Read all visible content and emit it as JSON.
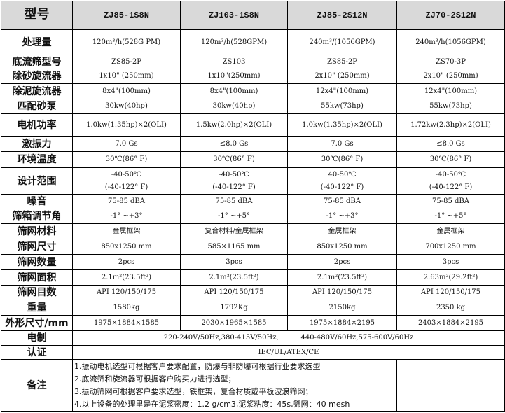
{
  "header": {
    "label": "型号",
    "models": [
      "ZJ85-1S8N",
      "ZJ103-1S8N",
      "ZJ85-2S12N",
      "ZJ70-2S12N"
    ]
  },
  "rows": [
    {
      "label": "处理量",
      "values": [
        "120m³/h(528G PM)",
        "120m³/h(528GPM)",
        "240m³/(1056GPM)",
        "240m³/h(1056GPM)"
      ]
    },
    {
      "label": "底流筛型号",
      "values": [
        "ZS85-2P",
        "ZS103",
        "ZS85-2P",
        "ZS70-3P"
      ]
    },
    {
      "label": "除砂旋流器",
      "values": [
        "1x10\" (250mm)",
        "1x10\"(250mm)",
        "2x10\" (250mm)",
        "2x10\" (250mm)"
      ]
    },
    {
      "label": "除泥旋流器",
      "values": [
        "8x4\"(100mm)",
        "8x4\"(100mm)",
        "12x4\"(100mm)",
        "12x4\"(100mm)"
      ]
    },
    {
      "label": "匹配砂泵",
      "values": [
        "30kw(40hp)",
        "30kw(40hp)",
        "55kw(73hp)",
        "55kw(73hp)"
      ]
    },
    {
      "label": "电机功率",
      "values": [
        "1.0kw(1.35hp)×2(OLI)",
        "1.5kw(2.0hp)×2(OLI)",
        "1.0kw(1.35hp)×2(OLI)",
        "1.72kw(2.3hp)×2(OLI)"
      ]
    },
    {
      "label": "激振力",
      "values": [
        "7.0 Gs",
        "≤8.0 Gs",
        "7.0 Gs",
        "≤8.0 Gs"
      ]
    },
    {
      "label": "环境温度",
      "values": [
        "30℃(86° F)",
        "30℃(86° F)",
        "30℃(86° F)",
        "30℃(86° F)"
      ]
    },
    {
      "label": "设计范围",
      "values": [
        [
          "-40-50℃",
          "(-40-122° F)"
        ],
        [
          "-40-50℃",
          "(-40-122° F)"
        ],
        [
          "40-50℃",
          "(-40-122° F)"
        ],
        [
          "-40-50℃",
          "(-40-122° F)"
        ]
      ]
    },
    {
      "label": "噪音",
      "values": [
        "75-85 dBA",
        "75-85 dBA",
        "75-85 dBA",
        "75-85 dBA"
      ]
    },
    {
      "label": "筛箱调节角",
      "values": [
        "-1° ~+3°",
        "-1° ~+5°",
        "-1° ~+3°",
        "-1° ~+5°"
      ]
    },
    {
      "label": "筛网材料",
      "values": [
        "金属框架",
        "复合材料/金属框架",
        "金属框架",
        "金属框架"
      ]
    },
    {
      "label": "筛网尺寸",
      "values": [
        "850x1250 mm",
        "585×1165 mm",
        "850x1250 mm",
        "700x1250 mm"
      ]
    },
    {
      "label": "筛网数量",
      "values": [
        "2pcs",
        "3pcs",
        "2pcs",
        "3pcs"
      ]
    },
    {
      "label": "筛网面积",
      "values": [
        "2.1m²(23.5ft²)",
        "2.1m²(23.5ft²)",
        "2.1m²(23.5ft²)",
        "2.63m²(29.2ft²)"
      ]
    },
    {
      "label": "筛网目数",
      "values": [
        "API 120/150/175",
        "API 120/150/175",
        "API 120/150/175",
        "API 120/150/175"
      ]
    },
    {
      "label": "重量",
      "values": [
        "1580kg",
        "1792Kg",
        "2150kg",
        "2350 kg"
      ]
    },
    {
      "label": "外形尺寸/mm",
      "values": [
        "1975×1884×1585",
        "2030×1965×1585",
        "1975×1884×2195",
        "2403×1884×2195"
      ]
    }
  ],
  "power": {
    "label": "电制",
    "value": "220-240V/50Hz,380-415V/50Hz,          440-480V/60Hz,575-600V/60Hz"
  },
  "cert": {
    "label": "认证",
    "value": "IEC/UL/ATEX/CE"
  },
  "notes": {
    "label": "备注",
    "lines": [
      "1.振动电机选型可根据客户要求配置，防爆与非防爆可根据行业要求选型",
      "2.底流筛和旋流器可根据客户购买力进行选型；",
      "3.振动筛网可根据客户要求选型，铁框架，复合材质或平板波浪筛网；",
      "4.以上设备的处理里是在泥浆密度：1.2 g/cm3,泥浆粘度：45s,筛网：40 mesh"
    ]
  }
}
